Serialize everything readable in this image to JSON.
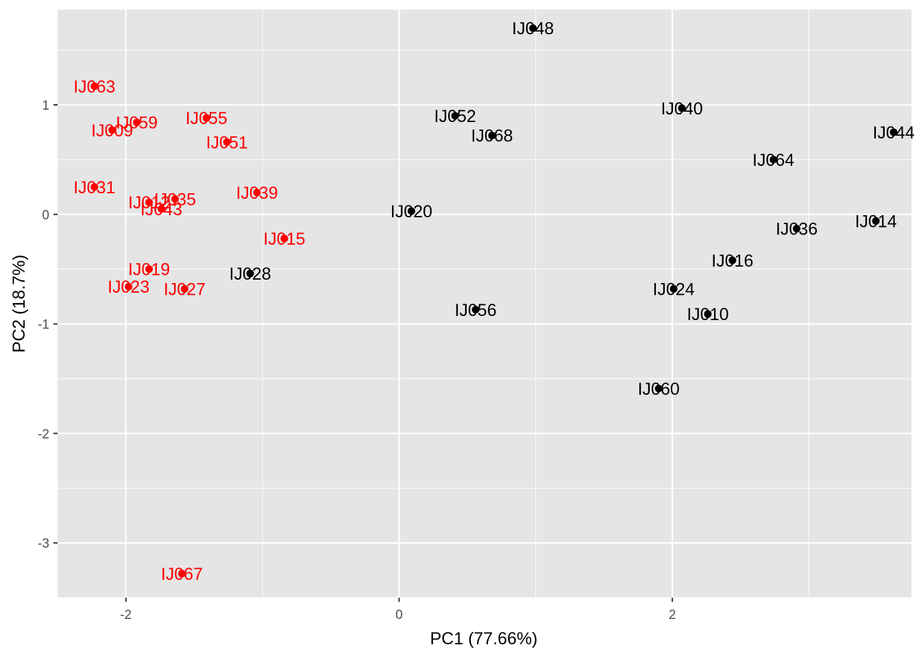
{
  "chart_data": {
    "type": "scatter",
    "title": "",
    "xlabel": "PC1 (77.66%)",
    "ylabel": "PC2 (18.7%)",
    "xlim": [
      -2.5,
      3.75
    ],
    "ylim": [
      -3.5,
      1.87
    ],
    "xticks": [
      -2,
      0,
      2
    ],
    "xtick_labels": [
      "-2",
      "0",
      "2"
    ],
    "yticks": [
      -3,
      -2,
      -1,
      0,
      1
    ],
    "ytick_labels": [
      "-3",
      "-2",
      "-1",
      "0",
      "1"
    ],
    "grid": true,
    "legend": "none",
    "colors": {
      "panel": "#e5e5e5",
      "grid": "#ffffff",
      "group_red": "#ff0000",
      "group_black": "#000000"
    },
    "points": [
      {
        "label": "IJ063",
        "x": -2.23,
        "y": 1.17,
        "group": "red"
      },
      {
        "label": "IJ059",
        "x": -1.92,
        "y": 0.84,
        "group": "red"
      },
      {
        "label": "IJ009",
        "x": -2.1,
        "y": 0.77,
        "group": "red"
      },
      {
        "label": "IJ055",
        "x": -1.41,
        "y": 0.88,
        "group": "red"
      },
      {
        "label": "IJ051",
        "x": -1.26,
        "y": 0.66,
        "group": "red"
      },
      {
        "label": "IJ031",
        "x": -2.23,
        "y": 0.25,
        "group": "red"
      },
      {
        "label": "IJ012",
        "x": -1.83,
        "y": 0.11,
        "group": "red"
      },
      {
        "label": "IJ035",
        "x": -1.64,
        "y": 0.14,
        "group": "red"
      },
      {
        "label": "IJ043",
        "x": -1.74,
        "y": 0.05,
        "group": "red"
      },
      {
        "label": "IJ039",
        "x": -1.04,
        "y": 0.2,
        "group": "red"
      },
      {
        "label": "IJ015",
        "x": -0.84,
        "y": -0.22,
        "group": "red"
      },
      {
        "label": "IJ019",
        "x": -1.83,
        "y": -0.5,
        "group": "red"
      },
      {
        "label": "IJ023",
        "x": -1.98,
        "y": -0.66,
        "group": "red"
      },
      {
        "label": "IJ027",
        "x": -1.57,
        "y": -0.68,
        "group": "red"
      },
      {
        "label": "IJ067",
        "x": -1.59,
        "y": -3.28,
        "group": "red"
      },
      {
        "label": "IJ028",
        "x": -1.09,
        "y": -0.54,
        "group": "black"
      },
      {
        "label": "IJ020",
        "x": 0.09,
        "y": 0.03,
        "group": "black"
      },
      {
        "label": "IJ052",
        "x": 0.41,
        "y": 0.9,
        "group": "black"
      },
      {
        "label": "IJ068",
        "x": 0.68,
        "y": 0.72,
        "group": "black"
      },
      {
        "label": "IJ048",
        "x": 0.98,
        "y": 1.7,
        "group": "black"
      },
      {
        "label": "IJ056",
        "x": 0.56,
        "y": -0.87,
        "group": "black"
      },
      {
        "label": "IJ040",
        "x": 2.07,
        "y": 0.97,
        "group": "black"
      },
      {
        "label": "IJ064",
        "x": 2.74,
        "y": 0.5,
        "group": "black"
      },
      {
        "label": "IJ044",
        "x": 3.62,
        "y": 0.75,
        "group": "black"
      },
      {
        "label": "IJ014",
        "x": 3.49,
        "y": -0.06,
        "group": "black"
      },
      {
        "label": "IJ036",
        "x": 2.91,
        "y": -0.13,
        "group": "black"
      },
      {
        "label": "IJ016",
        "x": 2.44,
        "y": -0.42,
        "group": "black"
      },
      {
        "label": "IJ024",
        "x": 2.01,
        "y": -0.68,
        "group": "black"
      },
      {
        "label": "IJ010",
        "x": 2.26,
        "y": -0.91,
        "group": "black"
      },
      {
        "label": "IJ060",
        "x": 1.9,
        "y": -1.59,
        "group": "black"
      }
    ]
  }
}
